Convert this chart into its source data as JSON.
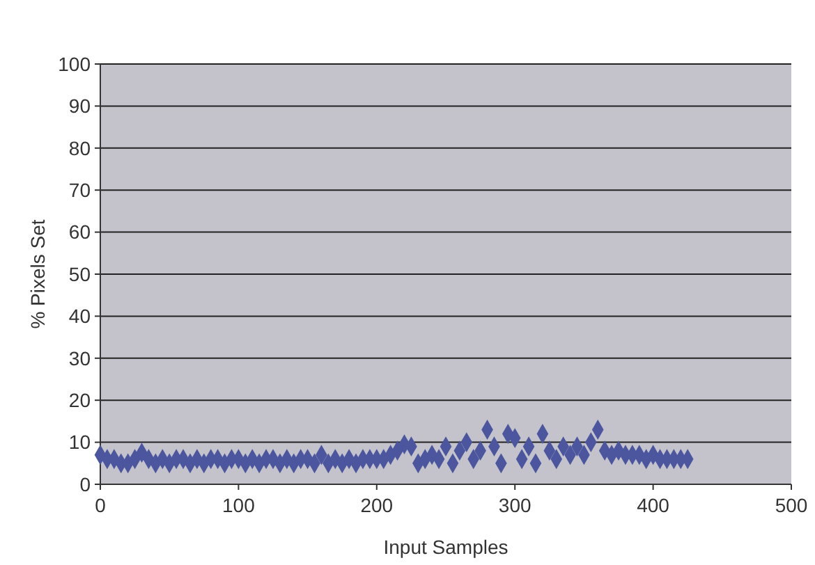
{
  "chart_data": {
    "type": "scatter",
    "xlabel": "Input Samples",
    "ylabel": "% Pixels Set",
    "xlim": [
      0,
      500
    ],
    "xticks": [
      0,
      100,
      200,
      300,
      400,
      500
    ],
    "ylim": [
      0,
      100
    ],
    "yticks": [
      0,
      10,
      20,
      30,
      40,
      50,
      60,
      70,
      80,
      90,
      100
    ],
    "grid": "y",
    "marker": "diamond",
    "series": [
      {
        "color": "#4b569e",
        "x": [
          0,
          5,
          10,
          15,
          20,
          25,
          30,
          35,
          40,
          45,
          50,
          55,
          60,
          65,
          70,
          75,
          80,
          85,
          90,
          95,
          100,
          105,
          110,
          115,
          120,
          125,
          130,
          135,
          140,
          145,
          150,
          155,
          160,
          165,
          170,
          175,
          180,
          185,
          190,
          195,
          200,
          205,
          210,
          215,
          220,
          225,
          230,
          235,
          240,
          245,
          250,
          255,
          260,
          265,
          270,
          275,
          280,
          285,
          290,
          295,
          300,
          305,
          310,
          315,
          320,
          325,
          330,
          335,
          340,
          345,
          350,
          355,
          360,
          365,
          370,
          375,
          380,
          385,
          390,
          395,
          400,
          405,
          410,
          415,
          420,
          425
        ],
        "values": [
          7,
          6,
          6,
          5,
          5,
          6,
          7.5,
          6,
          5,
          6,
          5,
          6,
          6,
          5,
          6,
          5,
          6,
          6,
          5,
          6,
          6,
          5,
          6,
          5,
          6,
          6,
          5,
          6,
          5,
          6,
          6,
          5,
          7,
          5,
          6,
          5,
          6,
          5,
          6,
          6,
          6,
          6,
          7,
          8,
          9.5,
          9,
          5,
          6,
          7,
          6,
          9,
          5,
          8,
          10,
          6,
          8,
          13,
          9,
          5,
          12,
          11,
          6,
          9,
          5,
          12,
          8,
          6,
          9,
          7,
          9,
          7,
          10,
          13,
          8,
          7,
          8,
          7,
          7,
          7,
          6,
          7,
          6,
          6,
          6,
          6,
          6
        ]
      }
    ]
  }
}
